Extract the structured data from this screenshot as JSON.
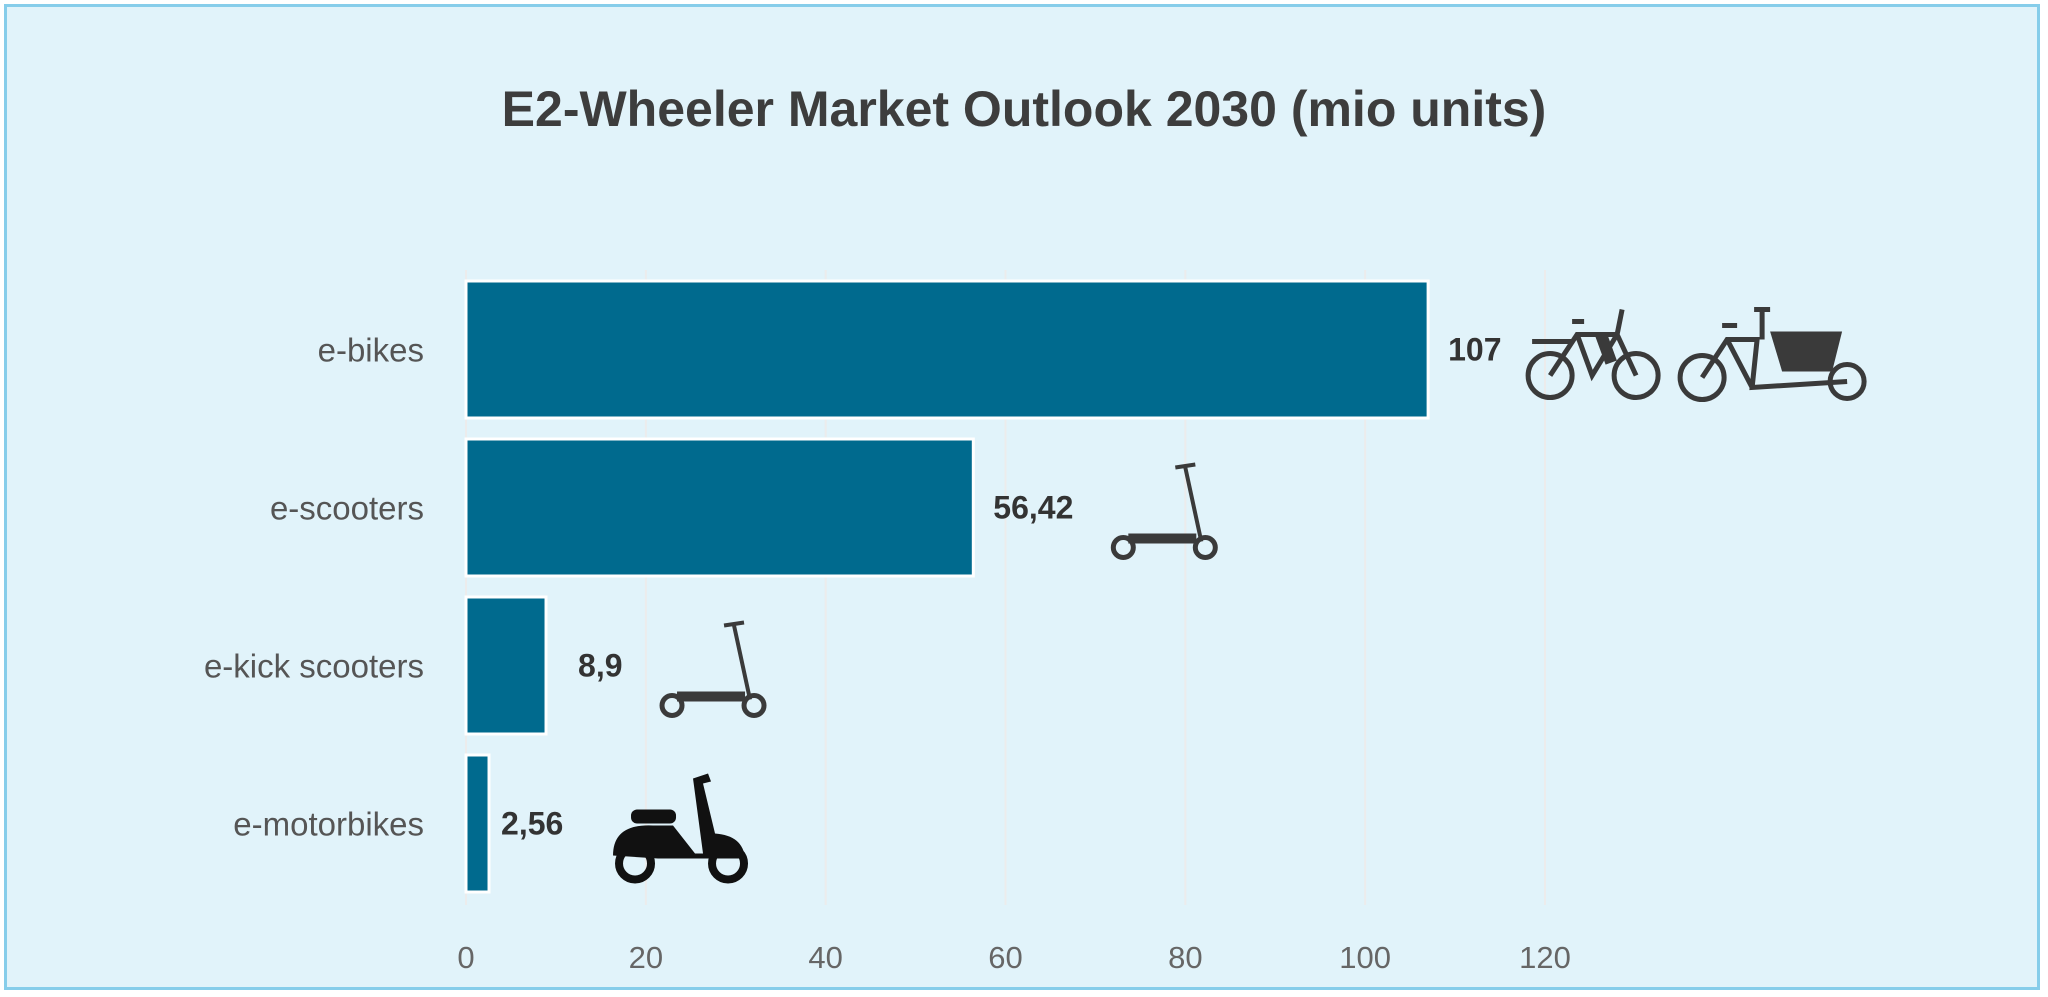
{
  "chart_data": {
    "type": "bar",
    "orientation": "horizontal",
    "title": "E2-Wheeler Market Outlook 2030 (mio units)",
    "categories": [
      "e-bikes",
      "e-scooters",
      "e-kick scooters",
      "e-motorbikes"
    ],
    "values": [
      107,
      56.42,
      8.9,
      2.56
    ],
    "data_labels": [
      "107",
      "56,42",
      "8,9",
      "2,56"
    ],
    "icons": [
      [
        "bicycle-icon",
        "cargo-bike-icon"
      ],
      [
        "kick-scooter-icon"
      ],
      [
        "kick-scooter-icon"
      ],
      [
        "moped-scooter-icon"
      ]
    ],
    "xlim": [
      0,
      120
    ],
    "xticks": [
      "0",
      "20",
      "40",
      "60",
      "80",
      "100",
      "120"
    ],
    "grid": true,
    "colors": {
      "bar": "#006a8e",
      "background": "#e1f3fa",
      "border": "#86cdea"
    }
  }
}
